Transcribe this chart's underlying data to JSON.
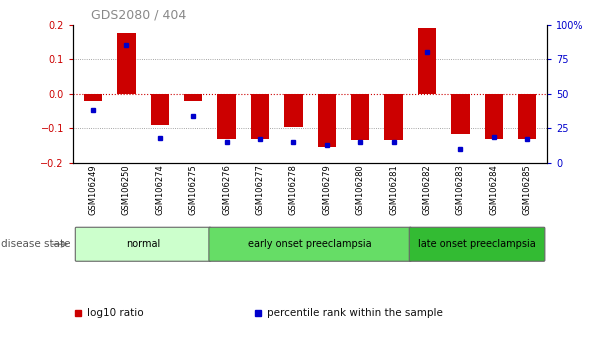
{
  "title": "GDS2080 / 404",
  "samples": [
    "GSM106249",
    "GSM106250",
    "GSM106274",
    "GSM106275",
    "GSM106276",
    "GSM106277",
    "GSM106278",
    "GSM106279",
    "GSM106280",
    "GSM106281",
    "GSM106282",
    "GSM106283",
    "GSM106284",
    "GSM106285"
  ],
  "log10_ratio": [
    -0.02,
    0.175,
    -0.09,
    -0.02,
    -0.13,
    -0.13,
    -0.095,
    -0.155,
    -0.135,
    -0.135,
    0.19,
    -0.115,
    -0.13,
    -0.13
  ],
  "percentile_rank": [
    38,
    85,
    18,
    34,
    15,
    17,
    15,
    13,
    15,
    15,
    80,
    10,
    19,
    17
  ],
  "bar_color": "#cc0000",
  "dot_color": "#0000cc",
  "ylim": [
    -0.2,
    0.2
  ],
  "y2lim": [
    0,
    100
  ],
  "yticks": [
    -0.2,
    -0.1,
    0,
    0.1,
    0.2
  ],
  "y2ticks": [
    0,
    25,
    50,
    75,
    100
  ],
  "y2ticklabels": [
    "0",
    "25",
    "50",
    "75",
    "100%"
  ],
  "hline_zero_color": "#cc0000",
  "hline_dotted_color": "#888888",
  "groups": [
    {
      "label": "normal",
      "start": 0,
      "end": 4,
      "color": "#ccffcc"
    },
    {
      "label": "early onset preeclampsia",
      "start": 4,
      "end": 10,
      "color": "#66dd66"
    },
    {
      "label": "late onset preeclampsia",
      "start": 10,
      "end": 14,
      "color": "#33bb33"
    }
  ],
  "disease_state_label": "disease state",
  "legend_items": [
    {
      "label": "log10 ratio",
      "color": "#cc0000"
    },
    {
      "label": "percentile rank within the sample",
      "color": "#0000cc"
    }
  ],
  "background_color": "#ffffff",
  "tick_label_color_left": "#cc0000",
  "tick_label_color_right": "#0000cc"
}
